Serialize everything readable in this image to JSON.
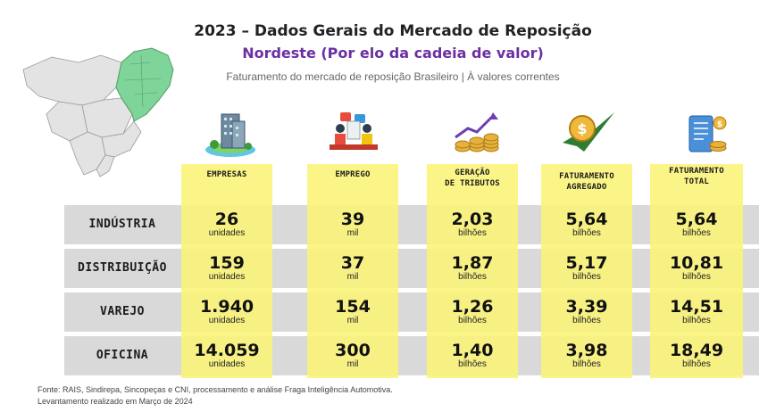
{
  "header": {
    "title": "2023 – Dados Gerais do Mercado de Reposição",
    "subtitle": "Nordeste  (Por elo da cadeia de valor)",
    "description": "Faturamento do mercado de reposição Brasileiro  | À valores correntes"
  },
  "columns": [
    {
      "label_line1": "EMPRESAS",
      "label_line2": "",
      "icon": "building-icon"
    },
    {
      "label_line1": "EMPREGO",
      "label_line2": "",
      "icon": "workers-icon"
    },
    {
      "label_line1": "GERAÇÃO",
      "label_line2": "DE TRIBUTOS",
      "icon": "coins-chart-icon"
    },
    {
      "label_line1": "FATURAMENTO",
      "label_line2": "AGREGADO",
      "icon": "dollar-coin-icon"
    },
    {
      "label_line1": "FATURAMENTO",
      "label_line2": "TOTAL",
      "icon": "receipt-coins-icon"
    }
  ],
  "rows": [
    {
      "label": "INDÚSTRIA",
      "cells": [
        {
          "value": "26",
          "unit": "unidades"
        },
        {
          "value": "39",
          "unit": "mil"
        },
        {
          "value": "2,03",
          "unit": "bilhões"
        },
        {
          "value": "5,64",
          "unit": "bilhões"
        },
        {
          "value": "5,64",
          "unit": "bilhões"
        }
      ]
    },
    {
      "label": "DISTRIBUIÇÃO",
      "cells": [
        {
          "value": "159",
          "unit": "unidades"
        },
        {
          "value": "37",
          "unit": "mil"
        },
        {
          "value": "1,87",
          "unit": "bilhões"
        },
        {
          "value": "5,17",
          "unit": "bilhões"
        },
        {
          "value": "10,81",
          "unit": "bilhões"
        }
      ]
    },
    {
      "label": "VAREJO",
      "cells": [
        {
          "value": "1.940",
          "unit": "unidades"
        },
        {
          "value": "154",
          "unit": "mil"
        },
        {
          "value": "1,26",
          "unit": "bilhões"
        },
        {
          "value": "3,39",
          "unit": "bilhões"
        },
        {
          "value": "14,51",
          "unit": "bilhões"
        }
      ]
    },
    {
      "label": "OFICINA",
      "cells": [
        {
          "value": "14.059",
          "unit": "unidades"
        },
        {
          "value": "300",
          "unit": "mil"
        },
        {
          "value": "1,40",
          "unit": "bilhões"
        },
        {
          "value": "3,98",
          "unit": "bilhões"
        },
        {
          "value": "18,49",
          "unit": "bilhões"
        }
      ]
    }
  ],
  "footer": {
    "source": "Fonte: RAIS, Sindirepa, Sincopeças e CNI, processamento e análise Fraga Inteligência Automotiva.",
    "date": "Levantamento realizado em Março de 2024"
  },
  "colors": {
    "highlight": "#faf478",
    "band": "#d9d9d9",
    "region": "#7fd49a",
    "subtitle": "#6b2fa3"
  }
}
